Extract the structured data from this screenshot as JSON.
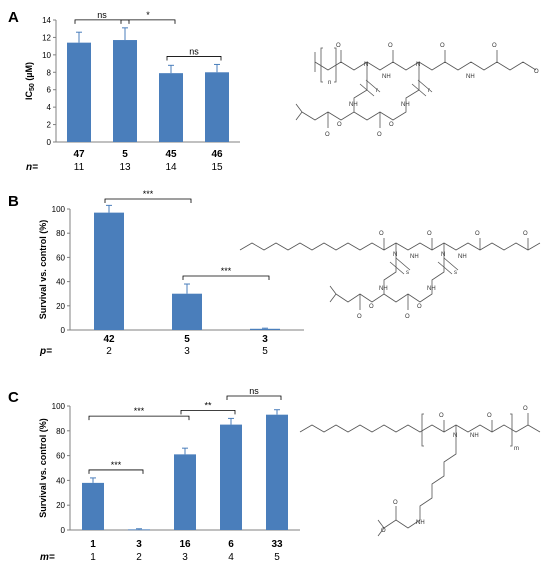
{
  "colors": {
    "bar": "#4a7ebb",
    "axis": "#808080",
    "text": "#000000"
  },
  "chart_data": [
    {
      "type": "bar",
      "panel": "A",
      "ylabel": "IC50 (µM)",
      "ylabel_main": "IC",
      "ylabel_sub": "50",
      "ylabel_unit": " (µM)",
      "ylim": [
        0,
        14
      ],
      "yticks": [
        "0",
        "2",
        "4",
        "6",
        "8",
        "10",
        "12",
        "14"
      ],
      "categories": [
        "47",
        "5",
        "45",
        "46"
      ],
      "values": [
        11.4,
        11.7,
        7.9,
        8.0
      ],
      "errors": [
        1.2,
        1.4,
        0.9,
        0.9
      ],
      "subrow_label": "n=",
      "subrow": [
        "11",
        "13",
        "14",
        "15"
      ],
      "significance": [
        {
          "from": 0,
          "to": 1,
          "label": "ns"
        },
        {
          "from": 1,
          "to": 2,
          "label": "*"
        },
        {
          "from": 2,
          "to": 3,
          "label": "ns"
        }
      ]
    },
    {
      "type": "bar",
      "panel": "B",
      "ylabel": "Survival vs. control (%)",
      "ylim": [
        0,
        100
      ],
      "yticks": [
        "0",
        "20",
        "40",
        "60",
        "80",
        "100"
      ],
      "categories": [
        "42",
        "5",
        "3"
      ],
      "values": [
        97,
        30,
        1
      ],
      "errors": [
        6,
        8,
        0.5
      ],
      "subrow_label": "p=",
      "subrow": [
        "2",
        "3",
        "5"
      ],
      "significance": [
        {
          "from": 0,
          "to": 1,
          "label": "***"
        },
        {
          "from": 1,
          "to": 2,
          "label": "***"
        }
      ]
    },
    {
      "type": "bar",
      "panel": "C",
      "ylabel": "Survival vs. control (%)",
      "ylim": [
        0,
        100
      ],
      "yticks": [
        "0",
        "20",
        "40",
        "60",
        "80",
        "100"
      ],
      "categories": [
        "1",
        "3",
        "16",
        "6",
        "33"
      ],
      "values": [
        38,
        0.5,
        61,
        85,
        93
      ],
      "errors": [
        4,
        0.5,
        5,
        5,
        4
      ],
      "subrow_label": "m=",
      "subrow": [
        "1",
        "2",
        "3",
        "4",
        "5"
      ],
      "significance": [
        {
          "from": 0,
          "to": 2,
          "label": "***"
        },
        {
          "from": 0,
          "to": 1,
          "label": "***"
        },
        {
          "from": 2,
          "to": 3,
          "label": "**"
        },
        {
          "from": 3,
          "to": 4,
          "label": "ns"
        }
      ]
    }
  ],
  "structures": {
    "A": {
      "subscripts": [
        "n",
        "r",
        "r"
      ]
    },
    "B": {
      "subscripts": [
        "s",
        "s"
      ]
    },
    "C": {
      "subscripts": [
        "m"
      ]
    }
  }
}
